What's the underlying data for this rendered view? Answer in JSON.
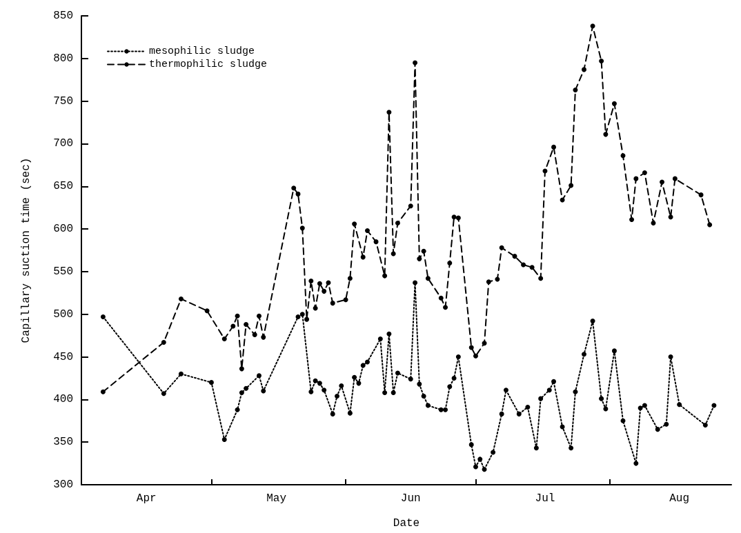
{
  "chart_data": {
    "type": "line",
    "xlabel": "Date",
    "ylabel": "Capillary suction time (sec)",
    "xlim": [
      "--04-01",
      "--08-29"
    ],
    "xticks": [
      {
        "value": "--04-16",
        "label": "Apr"
      },
      {
        "value": "--05-01",
        "label": null
      },
      {
        "value": "--05-16",
        "label": "May"
      },
      {
        "value": "--06-01",
        "label": null
      },
      {
        "value": "--06-16",
        "label": "Jun"
      },
      {
        "value": "--07-01",
        "label": null
      },
      {
        "value": "--07-17",
        "label": "Jul"
      },
      {
        "value": "--08-01",
        "label": null
      },
      {
        "value": "--08-17",
        "label": "Aug"
      }
    ],
    "ylim": [
      300,
      850
    ],
    "yticks": [
      300,
      350,
      400,
      450,
      500,
      550,
      600,
      650,
      700,
      750,
      800,
      850
    ],
    "grid": false,
    "legend": "top left",
    "marker": "circle",
    "series": [
      {
        "name": "mesophilic sludge",
        "color": "#000000",
        "line_style": "dotted",
        "x": [
          "--04-06",
          "--04-20",
          "--04-24",
          "--05-01",
          "--05-04",
          "--05-07",
          "--05-08",
          "--05-09",
          "--05-12",
          "--05-13",
          "--05-21",
          "--05-22",
          "--05-24",
          "--05-25",
          "--05-26",
          "--05-27",
          "--05-29",
          "--05-30",
          "--05-31",
          "--06-02",
          "--06-03",
          "--06-04",
          "--06-05",
          "--06-06",
          "--06-09",
          "--06-10",
          "--06-11",
          "--06-12",
          "--06-13",
          "--06-16",
          "--06-17",
          "--06-18",
          "--06-19",
          "--06-20",
          "--06-23",
          "--06-24",
          "--06-25",
          "--06-26",
          "--06-27",
          "--06-30",
          "--07-01",
          "--07-02",
          "--07-03",
          "--07-05",
          "--07-07",
          "--07-08",
          "--07-11",
          "--07-13",
          "--07-15",
          "--07-16",
          "--07-18",
          "--07-19",
          "--07-21",
          "--07-23",
          "--07-24",
          "--07-26",
          "--07-28",
          "--07-30",
          "--07-31",
          "--08-02",
          "--08-04",
          "--08-07",
          "--08-08",
          "--08-09",
          "--08-12",
          "--08-14",
          "--08-15",
          "--08-17",
          "--08-23",
          "--08-25"
        ],
        "values": [
          497,
          407,
          430,
          420,
          353,
          388,
          408,
          413,
          428,
          410,
          497,
          500,
          409,
          422,
          419,
          411,
          383,
          404,
          416,
          384,
          426,
          419,
          440,
          444,
          471,
          408,
          477,
          408,
          431,
          424,
          537,
          418,
          404,
          393,
          388,
          388,
          415,
          425,
          450,
          347,
          321,
          330,
          318,
          338,
          383,
          411,
          383,
          391,
          343,
          401,
          411,
          421,
          368,
          343,
          409,
          453,
          492,
          401,
          389,
          457,
          375,
          325,
          390,
          393,
          365,
          371,
          450,
          394,
          370,
          393
        ]
      },
      {
        "name": "thermophilic sludge",
        "color": "#000000",
        "line_style": "dashed",
        "x": [
          "--04-06",
          "--04-20",
          "--04-24",
          "--04-30",
          "--05-04",
          "--05-06",
          "--05-07",
          "--05-08",
          "--05-09",
          "--05-11",
          "--05-12",
          "--05-13",
          "--05-20",
          "--05-21",
          "--05-22",
          "--05-23",
          "--05-24",
          "--05-25",
          "--05-26",
          "--05-27",
          "--05-28",
          "--05-29",
          "--06-01",
          "--06-02",
          "--06-03",
          "--06-05",
          "--06-06",
          "--06-08",
          "--06-10",
          "--06-11",
          "--06-12",
          "--06-13",
          "--06-16",
          "--06-17",
          "--06-18",
          "--06-19",
          "--06-20",
          "--06-23",
          "--06-24",
          "--06-25",
          "--06-26",
          "--06-27",
          "--06-30",
          "--07-01",
          "--07-03",
          "--07-04",
          "--07-06",
          "--07-07",
          "--07-10",
          "--07-12",
          "--07-14",
          "--07-16",
          "--07-17",
          "--07-19",
          "--07-21",
          "--07-23",
          "--07-24",
          "--07-26",
          "--07-28",
          "--07-30",
          "--07-31",
          "--08-02",
          "--08-04",
          "--08-06",
          "--08-07",
          "--08-09",
          "--08-11",
          "--08-13",
          "--08-15",
          "--08-16",
          "--08-22",
          "--08-24"
        ],
        "values": [
          409,
          467,
          518,
          504,
          471,
          486,
          498,
          436,
          488,
          476,
          498,
          473,
          648,
          641,
          601,
          494,
          539,
          507,
          536,
          527,
          537,
          513,
          517,
          542,
          606,
          567,
          598,
          585,
          545,
          737,
          571,
          607,
          627,
          795,
          565,
          574,
          542,
          519,
          508,
          560,
          614,
          613,
          461,
          451,
          466,
          538,
          541,
          578,
          568,
          558,
          555,
          542,
          668,
          696,
          634,
          651,
          763,
          787,
          838,
          797,
          711,
          747,
          686,
          611,
          659,
          666,
          607,
          655,
          614,
          659,
          640,
          605
        ]
      }
    ]
  }
}
